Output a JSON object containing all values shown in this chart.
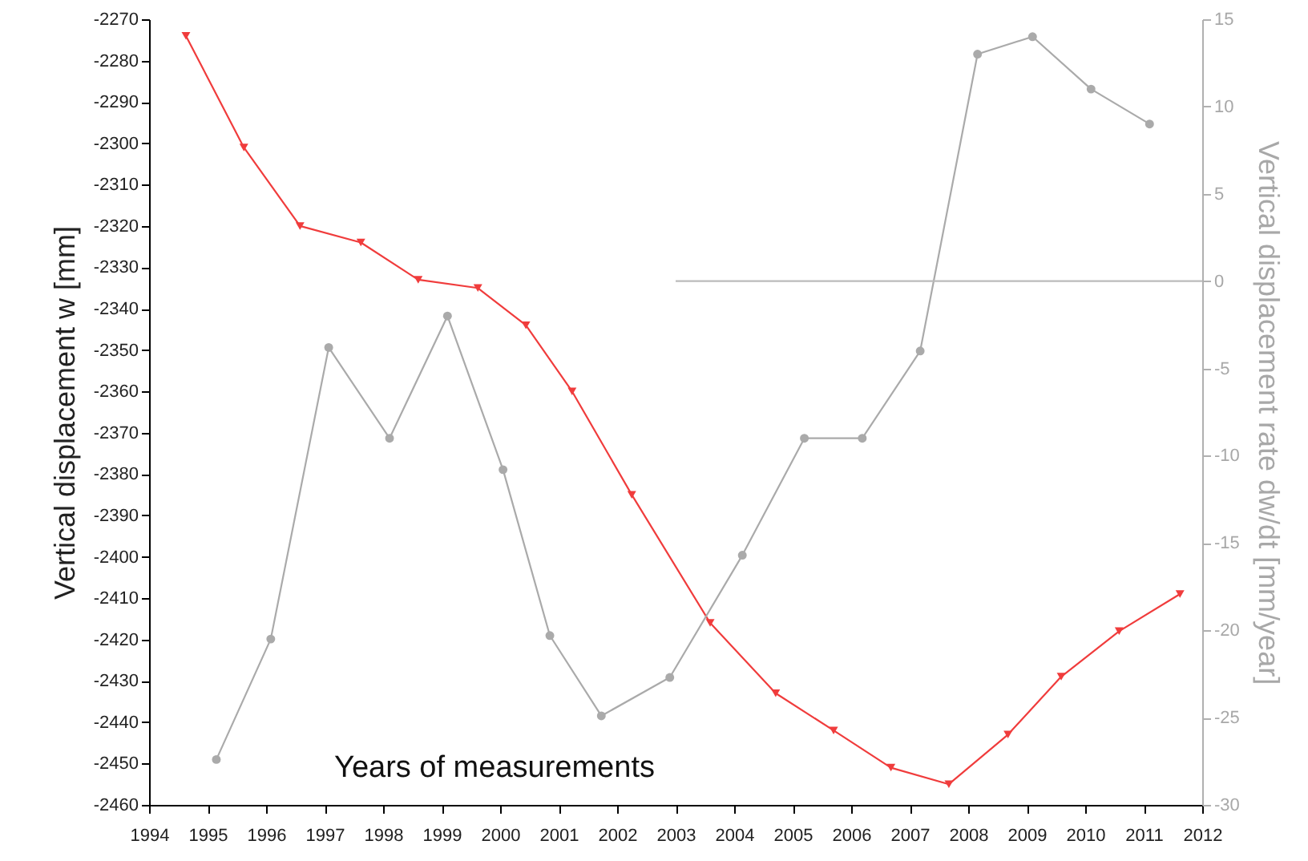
{
  "chart_data": {
    "type": "line",
    "xlabel": "Years of measurements",
    "ylabel": "Vertical displacement w [mm]",
    "y2label": "Vertical displacement rate dw/dt [mm/year]",
    "xlim": [
      1994,
      2012
    ],
    "xticks": [
      1994,
      1995,
      1996,
      1997,
      1998,
      1999,
      2000,
      2001,
      2002,
      2003,
      2004,
      2005,
      2006,
      2007,
      2008,
      2009,
      2010,
      2011,
      2012
    ],
    "ylim": [
      -2460,
      -2270
    ],
    "yticks": [
      -2460,
      -2450,
      -2440,
      -2430,
      -2420,
      -2410,
      -2400,
      -2390,
      -2380,
      -2370,
      -2360,
      -2350,
      -2340,
      -2330,
      -2320,
      -2310,
      -2300,
      -2290,
      -2280,
      -2270
    ],
    "y2lim": [
      -30,
      15
    ],
    "y2ticks": [
      -30,
      -25,
      -20,
      -15,
      -10,
      -5,
      0,
      5,
      10,
      15
    ],
    "grid": false,
    "series": [
      {
        "axis": "y",
        "color": "#f03c3c",
        "marker": "triangle",
        "line_style": "solid",
        "x": [
          1994.63,
          1995.62,
          1996.58,
          1997.62,
          1998.6,
          1999.62,
          2000.44,
          2001.23,
          2002.25,
          2003.59,
          2004.71,
          2005.7,
          2006.68,
          2007.67,
          2008.68,
          2009.59,
          2010.58,
          2011.62
        ],
        "values": [
          -2274,
          -2301,
          -2320,
          -2324,
          -2333,
          -2335,
          -2344,
          -2360,
          -2385,
          -2416,
          -2433,
          -2442,
          -2451,
          -2455,
          -2443,
          -2429,
          -2418,
          -2409
        ]
      },
      {
        "axis": "y2",
        "color": "#aaaaaa",
        "marker": "circle",
        "line_style": "solid",
        "x": [
          1995.15,
          1996.08,
          1997.07,
          1998.11,
          1999.1,
          2000.05,
          2000.85,
          2001.73,
          2002.9,
          2004.14,
          2005.2,
          2006.19,
          2007.18,
          2008.16,
          2009.1,
          2010.1,
          2011.1
        ],
        "values": [
          -27.4,
          -20.5,
          -3.8,
          -9,
          -2,
          -10.8,
          -20.3,
          -24.9,
          -22.7,
          -15.7,
          -9,
          -9,
          -4,
          13,
          14,
          11,
          9
        ]
      },
      {
        "axis": "y2",
        "color": "#bbbbbb",
        "marker": "none",
        "line_style": "solid",
        "x": [
          2003,
          2012
        ],
        "values": [
          0,
          0
        ]
      }
    ]
  }
}
